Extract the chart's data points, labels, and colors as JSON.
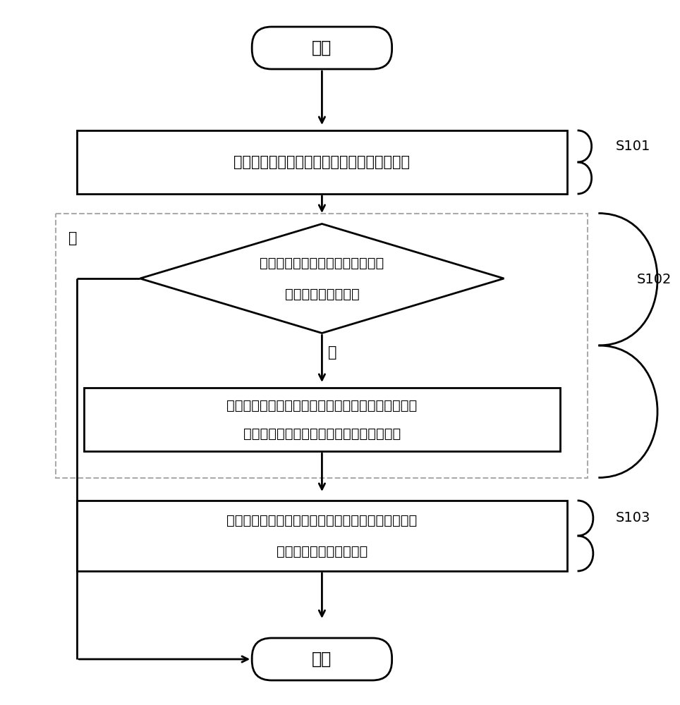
{
  "bg_color": "#ffffff",
  "line_color": "#000000",
  "text_color": "#000000",
  "font_size_main": 15,
  "font_size_label": 14,
  "font_size_step": 14,
  "start_text": "开始",
  "end_text": "结束",
  "s101_label": "S101",
  "s102_label": "S102",
  "s103_label": "S103",
  "box1_text": "变速箱控制单元获取汽车的纵向倾斜角度信息",
  "diamond_line1": "根据纵向倾斜角度信息判断汽车的",
  "diamond_line2": "行驶是否为上坡行驶",
  "box2_line1": "根据纵向倾斜角度信息计算发动机的坡道修正扭矩，",
  "box2_line2": "并向发动机电子控制单元发送坡道修正扭矩",
  "box3_line1": "变速箱控制单元根据变速箱的档位和坡道阻力扭矩计",
  "box3_line2": "算发动机的坡道修正扭矩",
  "yes_text": "是",
  "no_text": "否",
  "figsize": [
    9.64,
    10.0
  ],
  "dpi": 100
}
